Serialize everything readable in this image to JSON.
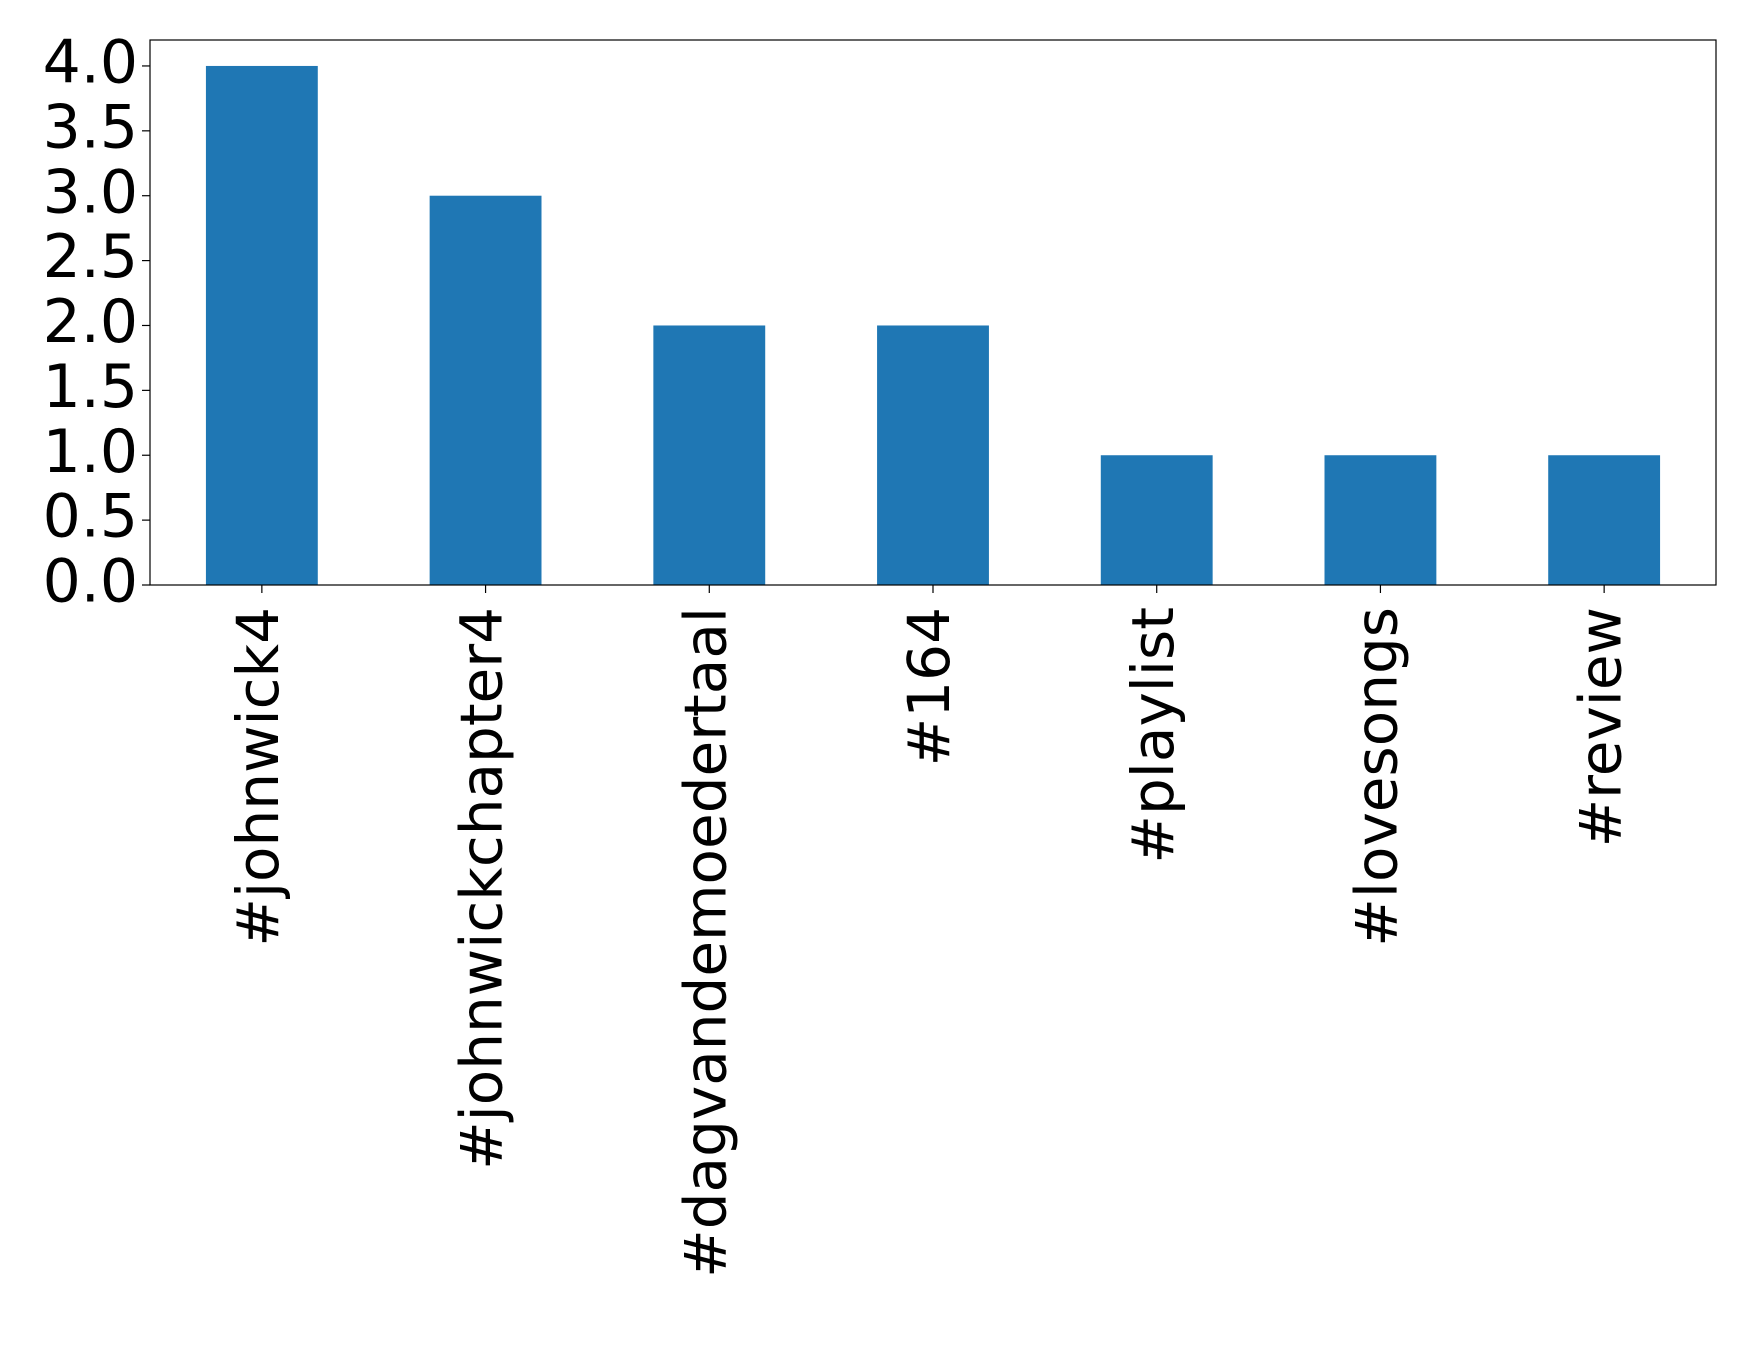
{
  "chart_data": {
    "type": "bar",
    "categories": [
      "#johnwick4",
      "#johnwickchapter4",
      "#dagvandemoedertaal",
      "#164",
      "#playlist",
      "#lovesongs",
      "#review"
    ],
    "values": [
      4,
      3,
      2,
      2,
      1,
      1,
      1
    ],
    "color": "#1f77b4",
    "ylim": [
      0,
      4.2
    ],
    "yticks": [
      {
        "value": 0,
        "label": "0.0"
      },
      {
        "value": 0.5,
        "label": "0.5"
      },
      {
        "value": 1,
        "label": "1.0"
      },
      {
        "value": 1.5,
        "label": "1.5"
      },
      {
        "value": 2,
        "label": "2.0"
      },
      {
        "value": 2.5,
        "label": "2.5"
      },
      {
        "value": 3,
        "label": "3.0"
      },
      {
        "value": 3.5,
        "label": "3.5"
      },
      {
        "value": 4,
        "label": "4.0"
      }
    ],
    "grid": false
  }
}
